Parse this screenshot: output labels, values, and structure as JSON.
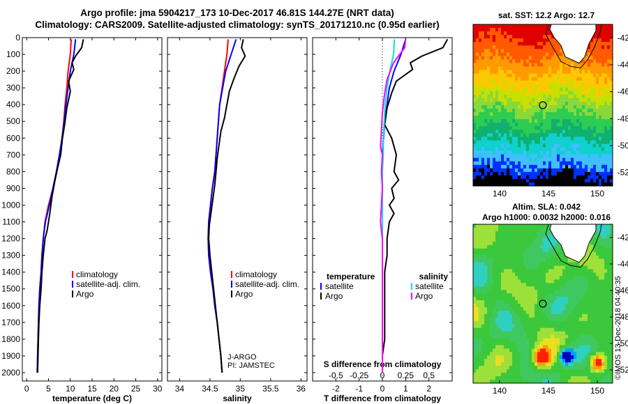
{
  "title": {
    "line1": "Argo profile: jma 5904217_173 10-Dec-2017 46.81S 144.27E (NRT data)",
    "line2": "Climatology: CARS2009. Satellite-adjusted climatology: synTS_20171210.nc (0.95d earlier)"
  },
  "colors": {
    "climatology": "#ff0000",
    "satellite": "#0000ff",
    "argo": "#000000",
    "satellite_salinity": "#00e5e5",
    "argo_salinity": "#ff00ff"
  },
  "map_sst": {
    "title": "sat. SST: 12.2 Argo: 12.7",
    "lat_ticks": [
      "-42",
      "-44",
      "-46",
      "-48",
      "-50",
      "-52"
    ],
    "lon_ticks": [
      "140",
      "145",
      "150"
    ]
  },
  "map_sla": {
    "title1": "Altim. SLA: 0.042",
    "title2": "Argo h1000: 0.0032 h2000: 0.016",
    "lat_ticks": [
      "-42",
      "-44",
      "-46",
      "-48",
      "-50",
      "-52"
    ],
    "lon_ticks": [
      "140",
      "145",
      "150"
    ]
  },
  "stamp": "©IMOS 13-Dec-2018 04:40:35",
  "chart_data": [
    {
      "type": "line",
      "xlabel": "temperature (deg C)",
      "ylabel": "",
      "xlim": [
        -1,
        31
      ],
      "ylim": [
        2050,
        0
      ],
      "x_ticks": [
        "0",
        "5",
        "10",
        "15",
        "20",
        "25",
        "30"
      ],
      "y_ticks": [
        "0",
        "100",
        "200",
        "300",
        "400",
        "500",
        "600",
        "700",
        "800",
        "900",
        "1000",
        "1100",
        "1200",
        "1300",
        "1400",
        "1500",
        "1600",
        "1700",
        "1800",
        "1900",
        "2000"
      ],
      "legend": [
        "climatology",
        "satellite-adj. clim.",
        "Argo"
      ],
      "series": [
        {
          "name": "climatology",
          "color": "#ff0000",
          "x": [
            10.2,
            10.0,
            9.5,
            9.2,
            8.8,
            8.5,
            8.1,
            7.6,
            6.9,
            6.0,
            5.0,
            4.2,
            3.8,
            3.5,
            3.3,
            3.0,
            2.8,
            2.7,
            2.6,
            2.5,
            2.4
          ],
          "y": [
            10,
            100,
            200,
            300,
            400,
            500,
            600,
            700,
            800,
            900,
            1000,
            1100,
            1200,
            1300,
            1400,
            1500,
            1600,
            1700,
            1800,
            1900,
            2000
          ]
        },
        {
          "name": "satellite-adj. clim.",
          "color": "#0000ff",
          "x": [
            11.2,
            10.8,
            10.0,
            9.5,
            9.0,
            8.6,
            8.1,
            7.5,
            6.8,
            6.0,
            5.2,
            4.3,
            3.8,
            3.5,
            3.3,
            3.0,
            2.8,
            2.7,
            2.6,
            2.5,
            2.4
          ],
          "y": [
            10,
            100,
            200,
            300,
            400,
            500,
            600,
            700,
            800,
            900,
            1000,
            1100,
            1200,
            1300,
            1400,
            1500,
            1600,
            1700,
            1800,
            1900,
            2000
          ]
        },
        {
          "name": "Argo",
          "color": "#000000",
          "x": [
            13.0,
            12.6,
            11.2,
            10.4,
            10.8,
            9.6,
            10.0,
            9.2,
            8.7,
            8.2,
            7.8,
            6.9,
            6.5,
            5.8,
            5.3,
            5.0,
            4.7,
            4.2,
            3.8,
            3.5,
            3.3,
            3.0,
            2.8,
            2.7,
            2.6,
            2.5
          ],
          "y": [
            10,
            60,
            110,
            150,
            190,
            260,
            320,
            420,
            520,
            600,
            700,
            800,
            850,
            950,
            1050,
            1100,
            1150,
            1200,
            1300,
            1400,
            1500,
            1600,
            1700,
            1800,
            1900,
            2000
          ]
        }
      ]
    },
    {
      "type": "line",
      "xlabel": "salinity",
      "ylabel": "",
      "xlim": [
        33.8,
        36.1
      ],
      "ylim": [
        2050,
        0
      ],
      "x_ticks": [
        "34",
        "34.5",
        "35",
        "35.5",
        "36"
      ],
      "legend": [
        "climatology",
        "satellite-adj. clim.",
        "Argo"
      ],
      "annotation": [
        "J-ARGO",
        "PI: JAMSTEC"
      ],
      "series": [
        {
          "name": "climatology",
          "color": "#ff0000",
          "x": [
            34.8,
            34.78,
            34.74,
            34.7,
            34.66,
            34.64,
            34.62,
            34.6,
            34.58,
            34.54,
            34.51,
            34.48,
            34.47,
            34.48,
            34.51,
            34.55,
            34.58,
            34.62,
            34.65,
            34.68,
            34.7
          ],
          "y": [
            10,
            100,
            200,
            300,
            400,
            500,
            600,
            700,
            800,
            900,
            1000,
            1100,
            1200,
            1300,
            1400,
            1500,
            1600,
            1700,
            1800,
            1900,
            2000
          ]
        },
        {
          "name": "satellite-adj. clim.",
          "color": "#0000ff",
          "x": [
            34.93,
            34.85,
            34.76,
            34.71,
            34.66,
            34.64,
            34.62,
            34.6,
            34.58,
            34.54,
            34.51,
            34.48,
            34.47,
            34.48,
            34.51,
            34.55,
            34.58,
            34.62,
            34.65,
            34.68,
            34.7
          ],
          "y": [
            10,
            100,
            200,
            300,
            400,
            500,
            600,
            700,
            800,
            900,
            1000,
            1100,
            1200,
            1300,
            1400,
            1500,
            1600,
            1700,
            1800,
            1900,
            2000
          ]
        },
        {
          "name": "Argo",
          "color": "#000000",
          "x": [
            35.05,
            35.02,
            35.08,
            34.98,
            34.9,
            34.82,
            34.78,
            34.74,
            34.68,
            34.65,
            34.62,
            34.6,
            34.58,
            34.55,
            34.52,
            34.49,
            34.48,
            34.5,
            34.53,
            34.56,
            34.59,
            34.62,
            34.65,
            34.68,
            34.7
          ],
          "y": [
            10,
            60,
            110,
            170,
            240,
            320,
            400,
            480,
            560,
            640,
            720,
            800,
            880,
            960,
            1040,
            1120,
            1200,
            1300,
            1400,
            1500,
            1600,
            1700,
            1800,
            1900,
            2000
          ]
        }
      ]
    },
    {
      "type": "line",
      "xlabel": "T difference from climatology",
      "ylabel": "",
      "xlim": [
        -3,
        3
      ],
      "ylim": [
        2050,
        0
      ],
      "x_ticks": [
        "-2",
        "-1",
        "0",
        "1",
        "2"
      ],
      "secondary_xlabel": "S difference from climatology",
      "secondary_xlim": [
        -0.75,
        0.75
      ],
      "secondary_x_ticks": [
        "-0.5",
        "-0.25",
        "0",
        "0.25",
        "0.5"
      ],
      "legend_temperature": {
        "title": "temperature",
        "items": [
          "satellite",
          "Argo"
        ]
      },
      "legend_salinity": {
        "title": "salinity",
        "items": [
          "satellite",
          "Argo"
        ]
      },
      "series": [
        {
          "name": "satellite",
          "group": "temperature",
          "color": "#0000ff",
          "x": [
            1.0,
            0.8,
            0.5,
            0.3,
            0.2,
            0.1,
            0.05,
            0.0,
            0.0,
            0.0,
            0.0,
            0.0,
            0.0,
            0.0,
            0.0,
            0.0,
            0.0,
            0.0,
            0.0,
            0.0,
            0.0
          ],
          "y": [
            10,
            100,
            200,
            300,
            400,
            500,
            600,
            700,
            800,
            900,
            1000,
            1100,
            1200,
            1300,
            1400,
            1500,
            1600,
            1700,
            1800,
            1900,
            2000
          ]
        },
        {
          "name": "Argo",
          "group": "temperature",
          "color": "#000000",
          "x": [
            2.8,
            2.6,
            1.7,
            1.2,
            1.3,
            0.6,
            0.4,
            0.2,
            0.1,
            0.4,
            0.6,
            0.5,
            0.7,
            0.4,
            0.5,
            0.3,
            0.5,
            0.3,
            0.2,
            0.2,
            0.1,
            0.1,
            0.1,
            0.0,
            0.0
          ],
          "y": [
            10,
            60,
            110,
            150,
            190,
            260,
            330,
            420,
            520,
            600,
            700,
            800,
            850,
            900,
            960,
            1000,
            1050,
            1100,
            1200,
            1300,
            1400,
            1600,
            1800,
            1900,
            2000
          ]
        },
        {
          "name": "satellite",
          "group": "salinity",
          "color": "#00e5e5",
          "x": [
            0.13,
            0.12,
            0.08,
            0.05,
            0.03,
            0.02,
            0.01,
            0.01,
            0.0,
            0.0,
            0.0,
            0.0,
            0.0,
            0.0,
            0.0,
            0.0,
            0.0,
            0.0,
            0.0,
            0.0,
            0.0
          ],
          "y": [
            10,
            100,
            200,
            300,
            400,
            500,
            600,
            700,
            800,
            900,
            1000,
            1100,
            1200,
            1300,
            1400,
            1500,
            1600,
            1700,
            1800,
            1900,
            2000
          ]
        },
        {
          "name": "Argo",
          "group": "salinity",
          "color": "#ff00ff",
          "x": [
            0.25,
            0.24,
            0.12,
            0.05,
            0.02,
            0.0,
            -0.01,
            -0.02,
            0.0,
            -0.01,
            0.0,
            -0.02,
            0.0,
            0.0,
            0.0,
            0.0,
            0.0,
            0.0,
            0.0,
            0.0,
            0.0
          ],
          "y": [
            10,
            60,
            150,
            250,
            350,
            450,
            550,
            650,
            700,
            800,
            900,
            1100,
            1200,
            1300,
            1400,
            1500,
            1600,
            1700,
            1800,
            1900,
            2000
          ]
        }
      ]
    }
  ]
}
